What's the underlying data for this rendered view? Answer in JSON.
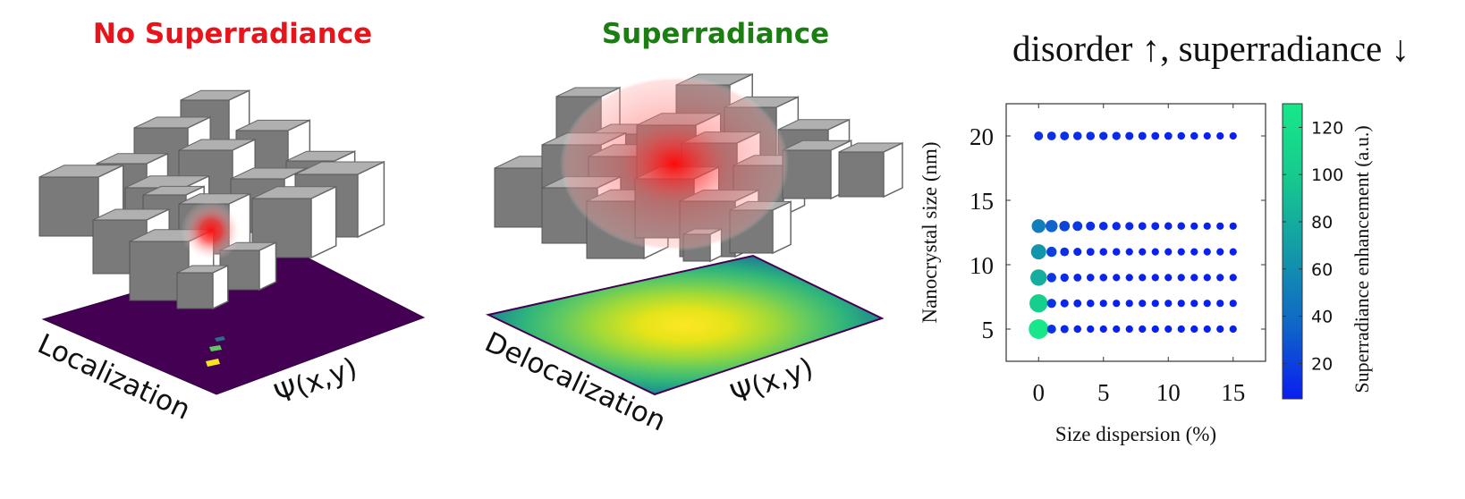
{
  "left_panel": {
    "title": "No Superradiance",
    "title_color": "#e8141c",
    "axis_label_left": "Localization",
    "axis_label_right": "Ψ(x,y)",
    "floor_color": "#440154"
  },
  "middle_panel": {
    "title": "Superradiance",
    "title_color": "#1b7d12",
    "axis_label_left": "Delocalization",
    "axis_label_right": "Ψ(x,y)"
  },
  "colors": {
    "cube_front": "#7a7a7a",
    "cube_top": "#b0b0b0",
    "cube_side": "#ffffff",
    "glow": "#ff1010"
  },
  "chart_data": {
    "type": "scatter",
    "title": "disorder ↑,  superradiance ↓",
    "xlabel": "Size dispersion (%)",
    "ylabel": "Nanocrystal size (nm)",
    "xlim": [
      -2.5,
      17.5
    ],
    "ylim": [
      2.5,
      22.5
    ],
    "xticks": [
      0,
      5,
      10,
      15
    ],
    "yticks": [
      5,
      10,
      15,
      20
    ],
    "colorbar": {
      "label": "Superradiance enhancement (a.u.)",
      "range": [
        5,
        130
      ],
      "ticks": [
        20,
        40,
        60,
        80,
        100,
        120
      ],
      "colormap": [
        "#0a1ef0",
        "#0f66c8",
        "#139aa8",
        "#16c98e",
        "#17e88a"
      ]
    },
    "x": [
      0,
      1,
      2,
      3,
      4,
      5,
      6,
      7,
      8,
      9,
      10,
      11,
      12,
      13,
      14,
      15
    ],
    "series": [
      {
        "y": 20,
        "enhancement": [
          13,
          12,
          12,
          11,
          11,
          10,
          10,
          9,
          9,
          8,
          8,
          7,
          7,
          6,
          6,
          6
        ]
      },
      {
        "y": 13,
        "enhancement": [
          50,
          35,
          22,
          17,
          13,
          11,
          10,
          9,
          8,
          8,
          7,
          7,
          6,
          6,
          6,
          6
        ]
      },
      {
        "y": 11,
        "enhancement": [
          65,
          20,
          12,
          9,
          8,
          7,
          7,
          6,
          6,
          6,
          6,
          6,
          6,
          6,
          6,
          6
        ]
      },
      {
        "y": 9,
        "enhancement": [
          80,
          15,
          10,
          8,
          7,
          7,
          6,
          6,
          6,
          6,
          6,
          6,
          6,
          6,
          6,
          6
        ]
      },
      {
        "y": 7,
        "enhancement": [
          105,
          14,
          9,
          8,
          7,
          6,
          6,
          6,
          6,
          6,
          6,
          6,
          6,
          6,
          6,
          6
        ]
      },
      {
        "y": 5,
        "enhancement": [
          128,
          13,
          9,
          7,
          6,
          6,
          6,
          6,
          6,
          6,
          6,
          6,
          6,
          6,
          6,
          6
        ]
      }
    ]
  }
}
